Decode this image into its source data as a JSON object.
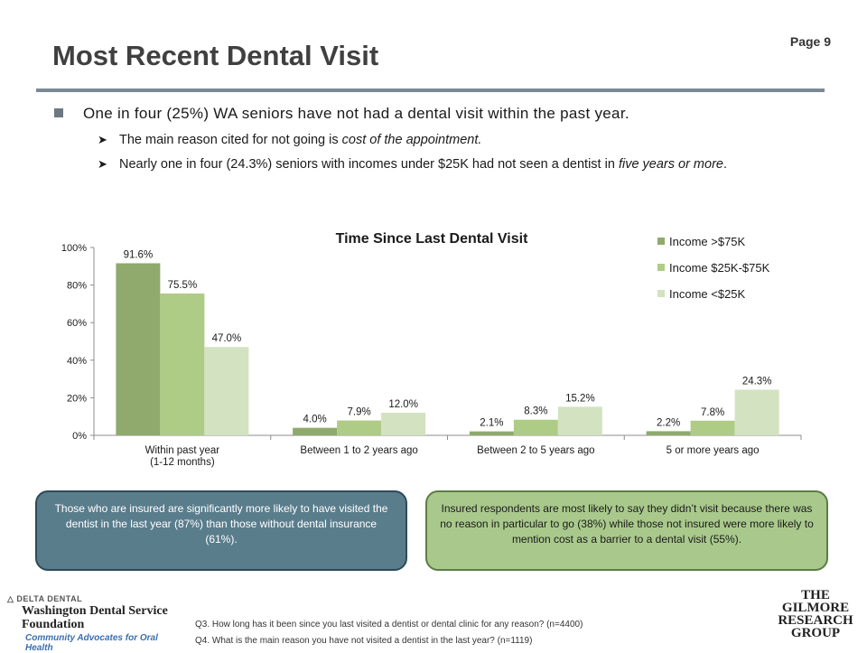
{
  "page_label": "Page 9",
  "title": "Most Recent Dental Visit",
  "bullets": {
    "main": "One in four (25%) WA seniors have not had a dental visit within the past year.",
    "sub1_pre": "The main reason cited for not going is ",
    "sub1_em": "cost of the appointment.",
    "sub2_pre": "Nearly one in four (24.3%) seniors with incomes under $25K had not seen a dentist in ",
    "sub2_em": "five years or more",
    "sub2_post": "."
  },
  "chart_data": {
    "type": "bar",
    "title": "Time Since Last Dental Visit",
    "categories": [
      [
        "Within past year",
        "(1-12 months)"
      ],
      [
        "Between 1 to 2 years ago"
      ],
      [
        "Between 2 to 5 years ago"
      ],
      [
        "5 or more years ago"
      ]
    ],
    "series": [
      {
        "name": "Income >$75K",
        "color": "#8faa6c",
        "values": [
          91.6,
          4.0,
          2.1,
          2.2
        ],
        "labels": [
          "91.6%",
          "4.0%",
          "2.1%",
          "2.2%"
        ]
      },
      {
        "name": "Income $25K-$75K",
        "color": "#afcc86",
        "values": [
          75.5,
          7.9,
          8.3,
          7.8
        ],
        "labels": [
          "75.5%",
          "7.9%",
          "8.3%",
          "7.8%"
        ]
      },
      {
        "name": "Income <$25K",
        "color": "#d3e2c0",
        "values": [
          47.0,
          12.0,
          15.2,
          24.3
        ],
        "labels": [
          "47.0%",
          "12.0%",
          "15.2%",
          "24.3%"
        ]
      }
    ],
    "yticks": [
      "0%",
      "20%",
      "40%",
      "60%",
      "80%",
      "100%"
    ],
    "ylim": [
      0,
      100
    ],
    "legend_position": "top-right",
    "grid": false
  },
  "callouts": {
    "left": "Those who are insured are significantly more likely to have visited the dentist in the last year (87%) than those without dental insurance (61%).",
    "right": "Insured respondents are most likely to say they didn’t visit because there was no reason in particular to go (38%) while those not insured were more likely to mention cost as a barrier to a dental visit (55%)."
  },
  "logo_left": {
    "top": "DELTA DENTAL",
    "name_line1": "Washington Dental Service",
    "name_line2": "Foundation",
    "tagline": "Community Advocates for Oral Health"
  },
  "footnotes": [
    "Q3. How long has it been since you last visited a dentist or dental clinic for any reason? (n=4400)",
    "Q4. What is the main reason you have not visited a dentist in the last year? (n=1119)"
  ],
  "logo_right": [
    "THE",
    "GILMORE",
    "RESEARCH",
    "GROUP"
  ],
  "colors": {
    "accent_rule": "#7a8a94",
    "callout_blue": "#5a7d8c",
    "callout_green": "#a9c98c"
  }
}
